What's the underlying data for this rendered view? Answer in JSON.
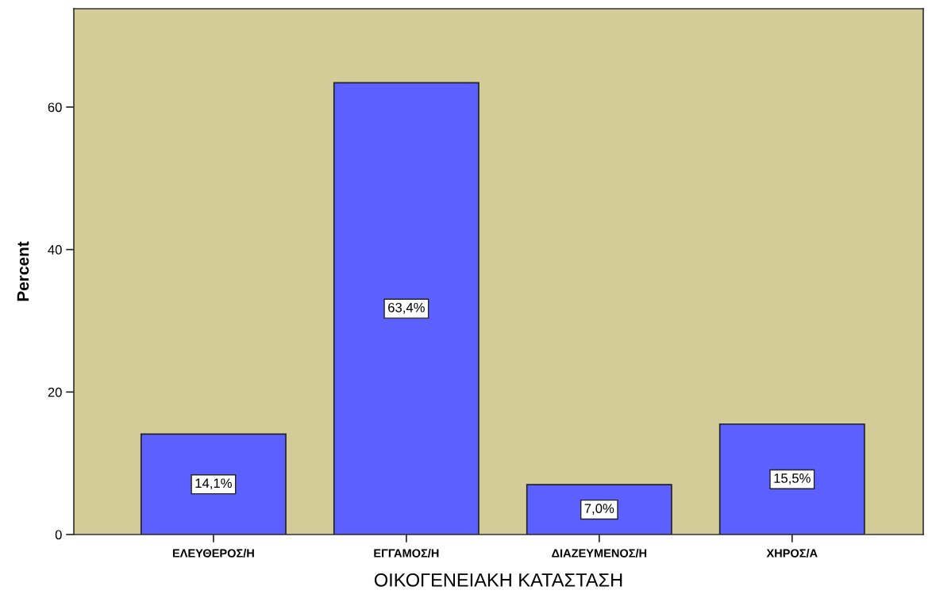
{
  "chart_data": {
    "type": "bar",
    "categories": [
      "ΕΛΕΥΘΕΡΟΣ/Η",
      "ΕΓΓΑΜΟΣ/Η",
      "ΔΙΑΖΕΥΜΕΝΟΣ/Η",
      "ΧΗΡΟΣ/Α"
    ],
    "values": [
      14.1,
      63.4,
      7.0,
      15.5
    ],
    "value_labels": [
      "14,1%",
      "63,4%",
      "7,0%",
      "15,5%"
    ],
    "color": "#5c60ff",
    "xlabel": "ΟΙΚΟΓΕΝΕΙΑΚΗ ΚΑΤΑΣΤΑΣΗ",
    "ylabel": "Percent",
    "ylim": [
      0,
      73.8
    ],
    "yticks": [
      0,
      20,
      40,
      60
    ],
    "grid": false,
    "legend": false
  }
}
